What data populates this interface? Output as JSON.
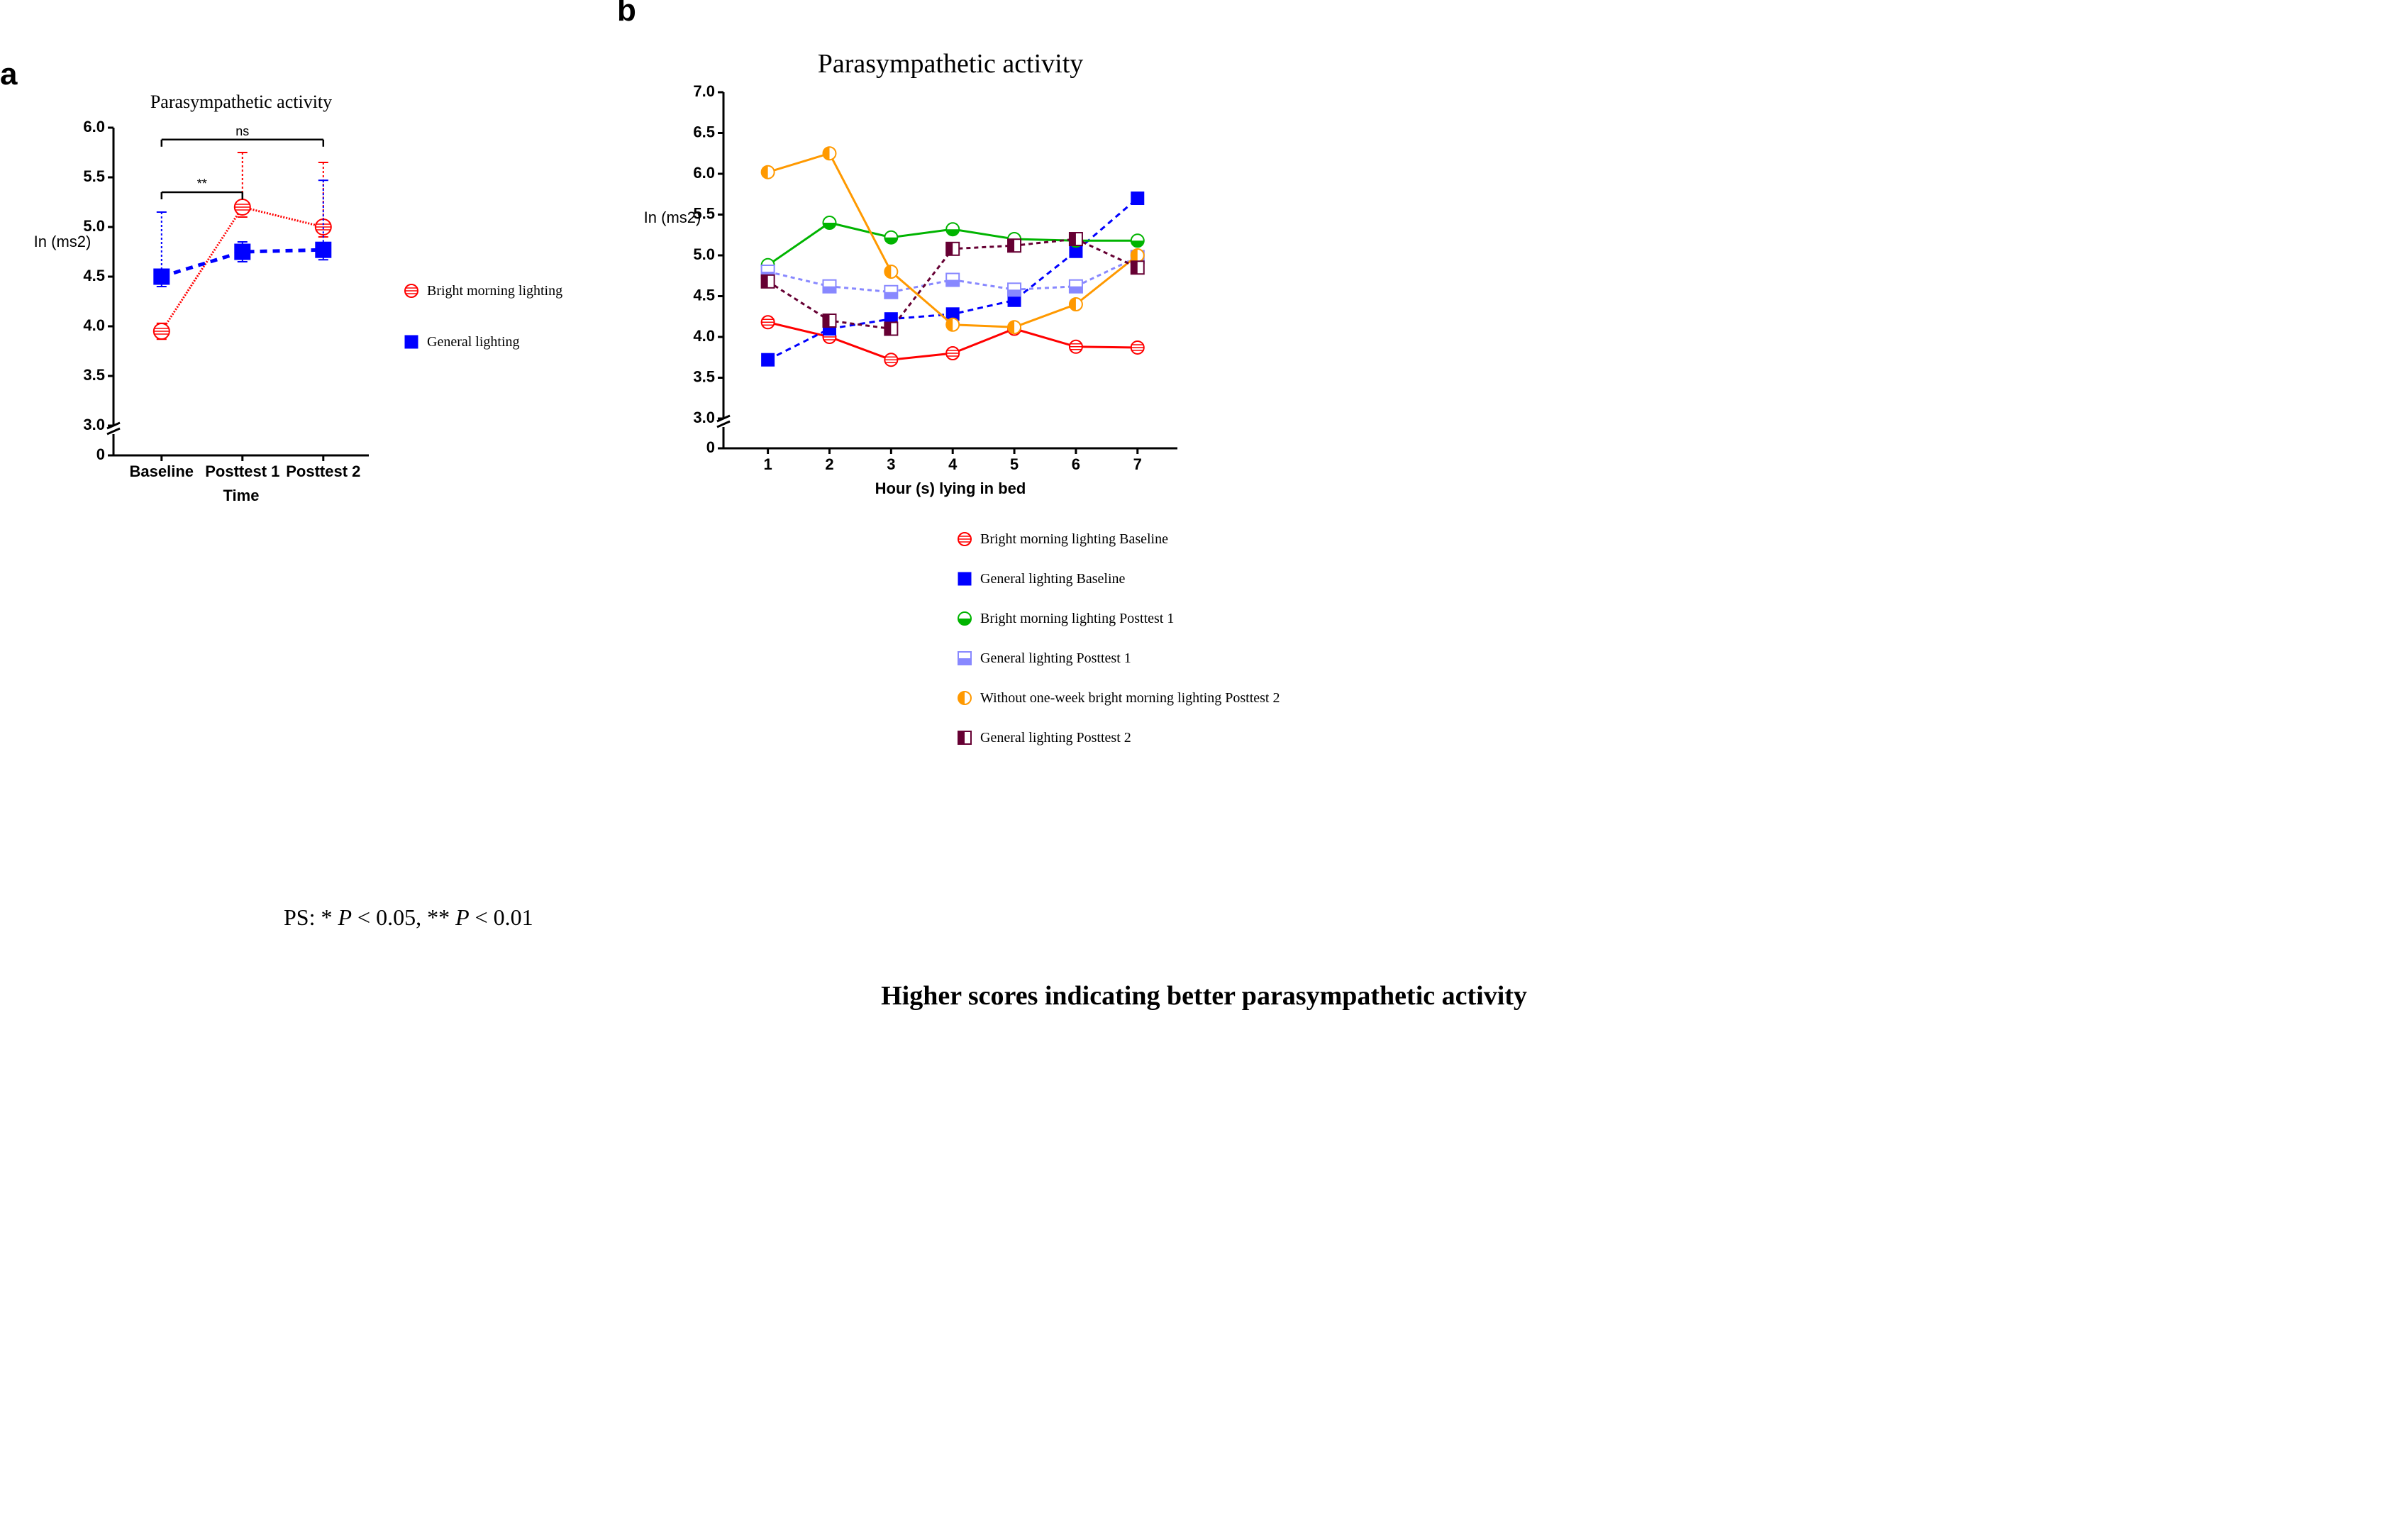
{
  "panel_a": {
    "label": "a",
    "title": "Parasympathetic activity",
    "title_fontsize": 26,
    "ylabel": "In (ms2)",
    "xlabel": "Time",
    "label_fontsize": 22,
    "y": {
      "min": 3.0,
      "max": 6.0,
      "ticks": [
        3.0,
        3.5,
        4.0,
        4.5,
        5.0,
        5.5,
        6.0
      ],
      "break": true,
      "zero": 0
    },
    "x_categories": [
      "Baseline",
      "Posttest 1",
      "Posttest 2"
    ],
    "series": [
      {
        "name": "Bright morning lighting",
        "type": "line",
        "color": "#ff0000",
        "marker": "circle-hatched",
        "dash": "2,2",
        "values": [
          3.95,
          5.2,
          5.0
        ],
        "err_up": [
          0.08,
          0.55,
          0.65
        ],
        "err_down": [
          0.08,
          0.1,
          0.1
        ]
      },
      {
        "name": "General lighting",
        "type": "line",
        "color": "#0000ff",
        "marker": "square-solid",
        "dash": "10,8",
        "line_width": 5,
        "values": [
          4.5,
          4.75,
          4.77
        ],
        "err_up": [
          0.65,
          0.1,
          0.7
        ],
        "err_down": [
          0.1,
          0.1,
          0.1
        ]
      }
    ],
    "sig": [
      {
        "from": 0,
        "to": 1,
        "label": "**",
        "y": 5.35
      },
      {
        "from": 0,
        "to": 2,
        "label": "ns",
        "y": 5.88
      }
    ],
    "background_color": "#ffffff",
    "axis_color": "#000000",
    "axis_width": 3
  },
  "panel_b": {
    "label": "b",
    "title": "Parasympathetic activity",
    "title_fontsize": 38,
    "ylabel": "In (ms2)",
    "xlabel": "Hour (s) lying in bed",
    "label_fontsize": 22,
    "y": {
      "min": 3.0,
      "max": 7.0,
      "ticks": [
        3.0,
        3.5,
        4.0,
        4.5,
        5.0,
        5.5,
        6.0,
        6.5,
        7.0
      ],
      "break": true,
      "zero": 0
    },
    "x_categories": [
      "1",
      "2",
      "3",
      "4",
      "5",
      "6",
      "7"
    ],
    "series": [
      {
        "name": "Bright morning lighting Baseline",
        "color": "#ff0000",
        "marker": "circle-hatched",
        "dash": "none",
        "line_width": 3,
        "values": [
          4.18,
          4.0,
          3.72,
          3.8,
          4.1,
          3.88,
          3.87
        ]
      },
      {
        "name": "General lighting Baseline",
        "color": "#0000ff",
        "marker": "square-solid",
        "dash": "8,6",
        "line_width": 3,
        "values": [
          3.72,
          4.1,
          4.22,
          4.28,
          4.45,
          5.05,
          5.7
        ]
      },
      {
        "name": "Bright morning lighting Posttest 1",
        "color": "#00b400",
        "marker": "circle-half",
        "dash": "none",
        "line_width": 3,
        "values": [
          4.88,
          5.4,
          5.22,
          5.32,
          5.2,
          5.18,
          5.18
        ]
      },
      {
        "name": "General lighting Posttest 1",
        "color": "#8888ff",
        "marker": "square-half",
        "dash": "6,5",
        "line_width": 3,
        "values": [
          4.8,
          4.62,
          4.55,
          4.7,
          4.58,
          4.62,
          4.98
        ]
      },
      {
        "name": "Without one-week bright morning lighting Posttest 2",
        "color": "#ff9900",
        "marker": "circle-halfside",
        "dash": "none",
        "line_width": 3,
        "values": [
          6.02,
          6.25,
          4.8,
          4.15,
          4.12,
          4.4,
          5.0
        ]
      },
      {
        "name": "General lighting Posttest 2",
        "color": "#660033",
        "marker": "square-halfside",
        "dash": "6,5",
        "line_width": 3,
        "values": [
          4.68,
          4.2,
          4.1,
          5.08,
          5.12,
          5.2,
          4.85
        ]
      }
    ],
    "background_color": "#ffffff",
    "axis_color": "#000000",
    "axis_width": 3
  },
  "footnote": "PS: * P < 0.05, ** P < 0.01",
  "caption": "Higher scores indicating better parasympathetic activity"
}
